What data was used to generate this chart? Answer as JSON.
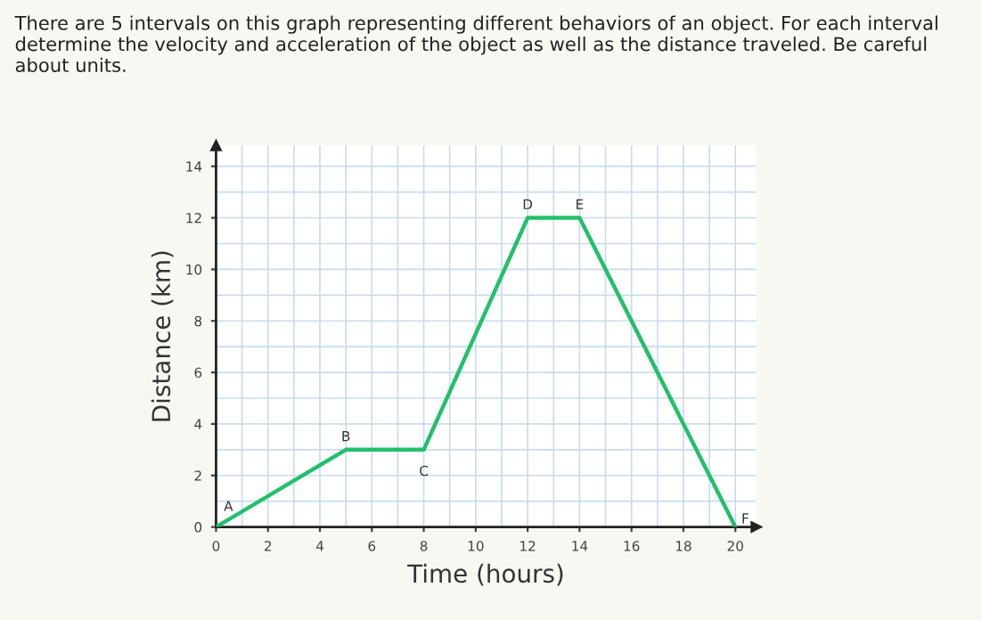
{
  "chart_data": {
    "type": "line",
    "title": "There are 5 intervals on this graph representing different behaviors of an object. For each interval determine the velocity and acceleration of the object as well as the distance traveled. Be careful about units.",
    "xlabel": "Time (hours)",
    "ylabel": "Distance (km)",
    "x": [
      0,
      5,
      8,
      12,
      14,
      20
    ],
    "series": [
      {
        "color": "#22c06a",
        "values": [
          0,
          3,
          3,
          12,
          12,
          0
        ]
      }
    ],
    "annotations": [
      {
        "text": "A",
        "x": 0,
        "y": 0
      },
      {
        "text": "B",
        "x": 5,
        "y": 3
      },
      {
        "text": "C",
        "x": 8,
        "y": 3
      },
      {
        "text": "D",
        "x": 12,
        "y": 12
      },
      {
        "text": "E",
        "x": 14,
        "y": 12
      },
      {
        "text": "F",
        "x": 20,
        "y": 0
      }
    ],
    "xlim": [
      0,
      20.8
    ],
    "ylim": [
      0,
      14.8
    ],
    "xticks": [
      0,
      2,
      4,
      6,
      8,
      10,
      12,
      14,
      16,
      18,
      20
    ],
    "yticks": [
      0,
      2,
      4,
      6,
      8,
      10,
      12,
      14
    ],
    "grid": true,
    "marker": "none",
    "line_style": "solid"
  }
}
